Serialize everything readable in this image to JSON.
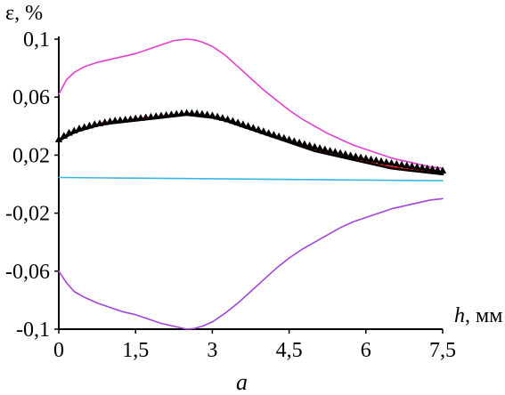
{
  "chart_data": {
    "type": "line",
    "title": "",
    "ylabel": "ε, %",
    "xlabel_var": "h",
    "xlabel_unit": ", мм",
    "caption": "a",
    "xlim": [
      0,
      7.5
    ],
    "ylim": [
      -0.1,
      0.1
    ],
    "x_ticks": [
      0,
      1.5,
      3,
      4.5,
      6,
      7.5
    ],
    "x_tick_labels": [
      "0",
      "1,5",
      "3",
      "4,5",
      "6",
      "7,5"
    ],
    "y_ticks": [
      0.1,
      0.06,
      0.02,
      -0.02,
      -0.06,
      -0.1
    ],
    "y_tick_labels": [
      "0,1",
      "0,06",
      "0,02",
      "-0,02",
      "-0,06",
      "-0,1"
    ],
    "grid": false,
    "series": [
      {
        "color": "#e23fd0",
        "style": "line",
        "points": [
          [
            0,
            0.062
          ],
          [
            0.15,
            0.072
          ],
          [
            0.3,
            0.077
          ],
          [
            0.5,
            0.081
          ],
          [
            0.75,
            0.084
          ],
          [
            1.0,
            0.086
          ],
          [
            1.25,
            0.088
          ],
          [
            1.5,
            0.09
          ],
          [
            1.75,
            0.093
          ],
          [
            2.0,
            0.096
          ],
          [
            2.25,
            0.099
          ],
          [
            2.5,
            0.1
          ],
          [
            2.65,
            0.0995
          ],
          [
            2.8,
            0.098
          ],
          [
            3.0,
            0.095
          ],
          [
            3.25,
            0.089
          ],
          [
            3.5,
            0.081
          ],
          [
            3.75,
            0.073
          ],
          [
            4.0,
            0.065
          ],
          [
            4.25,
            0.058
          ],
          [
            4.5,
            0.051
          ],
          [
            4.75,
            0.045
          ],
          [
            5.0,
            0.04
          ],
          [
            5.25,
            0.035
          ],
          [
            5.5,
            0.031
          ],
          [
            5.75,
            0.027
          ],
          [
            6.0,
            0.024
          ],
          [
            6.25,
            0.021
          ],
          [
            6.5,
            0.018
          ],
          [
            6.75,
            0.016
          ],
          [
            7.0,
            0.014
          ],
          [
            7.25,
            0.012
          ],
          [
            7.5,
            0.011
          ]
        ]
      },
      {
        "color": "#a246d6",
        "style": "line",
        "points": [
          [
            0,
            -0.06
          ],
          [
            0.15,
            -0.068
          ],
          [
            0.3,
            -0.074
          ],
          [
            0.5,
            -0.078
          ],
          [
            0.75,
            -0.082
          ],
          [
            1.0,
            -0.085
          ],
          [
            1.25,
            -0.088
          ],
          [
            1.5,
            -0.09
          ],
          [
            1.75,
            -0.093
          ],
          [
            2.0,
            -0.096
          ],
          [
            2.25,
            -0.098
          ],
          [
            2.5,
            -0.1
          ],
          [
            2.65,
            -0.0995
          ],
          [
            2.8,
            -0.098
          ],
          [
            3.0,
            -0.095
          ],
          [
            3.25,
            -0.089
          ],
          [
            3.5,
            -0.082
          ],
          [
            3.75,
            -0.074
          ],
          [
            4.0,
            -0.066
          ],
          [
            4.25,
            -0.058
          ],
          [
            4.5,
            -0.051
          ],
          [
            4.75,
            -0.045
          ],
          [
            5.0,
            -0.04
          ],
          [
            5.25,
            -0.035
          ],
          [
            5.5,
            -0.03
          ],
          [
            5.75,
            -0.026
          ],
          [
            6.0,
            -0.023
          ],
          [
            6.25,
            -0.02
          ],
          [
            6.5,
            -0.017
          ],
          [
            6.75,
            -0.015
          ],
          [
            7.0,
            -0.013
          ],
          [
            7.25,
            -0.011
          ],
          [
            7.5,
            -0.01
          ]
        ]
      },
      {
        "color": "#3bb4e6",
        "style": "line",
        "points": [
          [
            0,
            0.0046
          ],
          [
            1.0,
            0.0043
          ],
          [
            2.0,
            0.004
          ],
          [
            3.0,
            0.0037
          ],
          [
            4.0,
            0.0034
          ],
          [
            5.0,
            0.0031
          ],
          [
            6.0,
            0.0028
          ],
          [
            7.0,
            0.0025
          ],
          [
            7.5,
            0.0024
          ]
        ]
      },
      {
        "color": "#000000",
        "style": "line",
        "points": [
          [
            0,
            0.03
          ],
          [
            0.1,
            0.032
          ],
          [
            0.25,
            0.035
          ],
          [
            0.4,
            0.037
          ],
          [
            0.6,
            0.039
          ],
          [
            0.8,
            0.041
          ],
          [
            1.0,
            0.042
          ],
          [
            1.25,
            0.043
          ],
          [
            1.5,
            0.044
          ],
          [
            1.75,
            0.045
          ],
          [
            2.0,
            0.046
          ],
          [
            2.25,
            0.047
          ],
          [
            2.5,
            0.048
          ],
          [
            2.75,
            0.047
          ],
          [
            3.0,
            0.046
          ],
          [
            3.25,
            0.044
          ],
          [
            3.5,
            0.041
          ],
          [
            3.75,
            0.038
          ],
          [
            4.0,
            0.035
          ],
          [
            4.25,
            0.032
          ],
          [
            4.5,
            0.029
          ],
          [
            4.75,
            0.026
          ],
          [
            5.0,
            0.023
          ],
          [
            5.25,
            0.021
          ],
          [
            5.5,
            0.019
          ],
          [
            5.75,
            0.017
          ],
          [
            6.0,
            0.015
          ],
          [
            6.25,
            0.013
          ],
          [
            6.5,
            0.011
          ],
          [
            6.75,
            0.01
          ],
          [
            7.0,
            0.009
          ],
          [
            7.25,
            0.008
          ],
          [
            7.5,
            0.007
          ]
        ]
      },
      {
        "color": "#ff0000",
        "style": "dashed",
        "points": [
          [
            0,
            0.031
          ],
          [
            0.1,
            0.033
          ],
          [
            0.25,
            0.036
          ],
          [
            0.4,
            0.038
          ],
          [
            0.6,
            0.04
          ],
          [
            0.8,
            0.042
          ],
          [
            1.0,
            0.043
          ],
          [
            1.25,
            0.044
          ],
          [
            1.5,
            0.045
          ],
          [
            1.75,
            0.046
          ],
          [
            2.0,
            0.047
          ],
          [
            2.25,
            0.048
          ],
          [
            2.5,
            0.049
          ],
          [
            2.75,
            0.048
          ],
          [
            3.0,
            0.047
          ],
          [
            3.25,
            0.045
          ],
          [
            3.5,
            0.042
          ],
          [
            3.75,
            0.039
          ],
          [
            4.0,
            0.036
          ],
          [
            4.25,
            0.033
          ],
          [
            4.5,
            0.03
          ],
          [
            4.75,
            0.027
          ],
          [
            5.0,
            0.024
          ],
          [
            5.25,
            0.022
          ],
          [
            5.5,
            0.02
          ],
          [
            5.75,
            0.018
          ],
          [
            6.0,
            0.016
          ],
          [
            6.25,
            0.014
          ],
          [
            6.5,
            0.012
          ],
          [
            6.75,
            0.011
          ],
          [
            7.0,
            0.01
          ],
          [
            7.25,
            0.009
          ],
          [
            7.5,
            0.008
          ]
        ]
      },
      {
        "color": "#000000",
        "style": "markers",
        "marker": "triangle",
        "points": [
          [
            0.0,
            0.031
          ],
          [
            0.1,
            0.0335
          ],
          [
            0.2,
            0.0355
          ],
          [
            0.3,
            0.037
          ],
          [
            0.4,
            0.0385
          ],
          [
            0.5,
            0.0395
          ],
          [
            0.6,
            0.0405
          ],
          [
            0.7,
            0.0415
          ],
          [
            0.8,
            0.042
          ],
          [
            0.9,
            0.0428
          ],
          [
            1.0,
            0.0435
          ],
          [
            1.1,
            0.044
          ],
          [
            1.2,
            0.0443
          ],
          [
            1.3,
            0.0447
          ],
          [
            1.4,
            0.045
          ],
          [
            1.5,
            0.0455
          ],
          [
            1.6,
            0.0458
          ],
          [
            1.7,
            0.0462
          ],
          [
            1.8,
            0.0466
          ],
          [
            1.9,
            0.047
          ],
          [
            2.0,
            0.0474
          ],
          [
            2.1,
            0.0478
          ],
          [
            2.2,
            0.0482
          ],
          [
            2.3,
            0.0486
          ],
          [
            2.4,
            0.049
          ],
          [
            2.5,
            0.0493
          ],
          [
            2.6,
            0.0492
          ],
          [
            2.7,
            0.049
          ],
          [
            2.8,
            0.0486
          ],
          [
            2.9,
            0.0481
          ],
          [
            3.0,
            0.0475
          ],
          [
            3.1,
            0.0467
          ],
          [
            3.2,
            0.0458
          ],
          [
            3.3,
            0.0448
          ],
          [
            3.4,
            0.0437
          ],
          [
            3.5,
            0.0426
          ],
          [
            3.6,
            0.0414
          ],
          [
            3.7,
            0.0402
          ],
          [
            3.8,
            0.039
          ],
          [
            3.9,
            0.0378
          ],
          [
            4.0,
            0.0366
          ],
          [
            4.1,
            0.0354
          ],
          [
            4.2,
            0.0342
          ],
          [
            4.3,
            0.0331
          ],
          [
            4.4,
            0.032
          ],
          [
            4.5,
            0.0309
          ],
          [
            4.6,
            0.0298
          ],
          [
            4.7,
            0.0288
          ],
          [
            4.8,
            0.0278
          ],
          [
            4.9,
            0.0268
          ],
          [
            5.0,
            0.0259
          ],
          [
            5.1,
            0.025
          ],
          [
            5.2,
            0.0241
          ],
          [
            5.3,
            0.0232
          ],
          [
            5.4,
            0.0224
          ],
          [
            5.5,
            0.0216
          ],
          [
            5.6,
            0.0208
          ],
          [
            5.7,
            0.02
          ],
          [
            5.8,
            0.0193
          ],
          [
            5.9,
            0.0186
          ],
          [
            6.0,
            0.0179
          ],
          [
            6.1,
            0.0172
          ],
          [
            6.2,
            0.0166
          ],
          [
            6.3,
            0.0159
          ],
          [
            6.4,
            0.0153
          ],
          [
            6.5,
            0.0147
          ],
          [
            6.6,
            0.0141
          ],
          [
            6.7,
            0.0136
          ],
          [
            6.8,
            0.013
          ],
          [
            6.9,
            0.0125
          ],
          [
            7.0,
            0.012
          ],
          [
            7.1,
            0.0115
          ],
          [
            7.2,
            0.011
          ],
          [
            7.3,
            0.0105
          ],
          [
            7.4,
            0.01
          ],
          [
            7.5,
            0.0095
          ]
        ]
      }
    ]
  }
}
